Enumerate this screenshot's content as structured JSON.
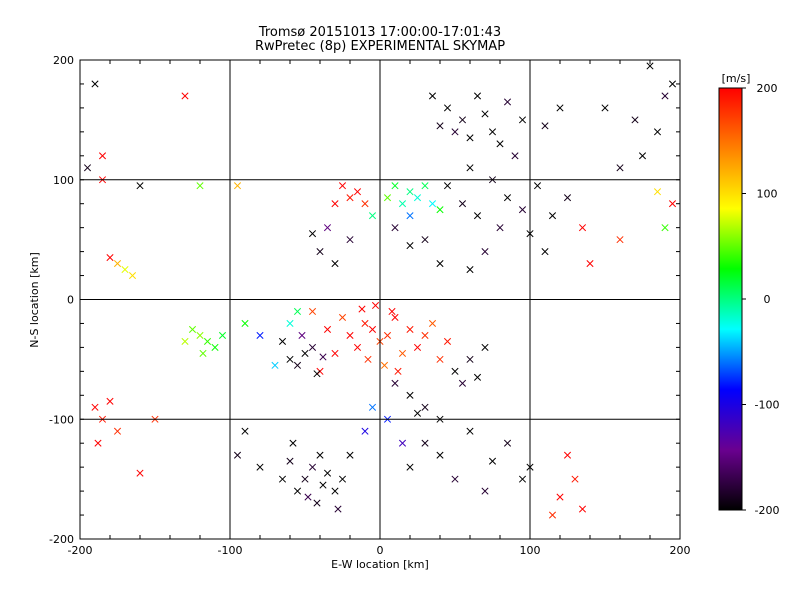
{
  "chart_data": {
    "type": "scatter",
    "title": "Tromsø 20151013 17:00:00-17:01:43",
    "subtitle": "RwPretec (8p) EXPERIMENTAL SKYMAP",
    "xlabel": "E-W location [km]",
    "ylabel": "N-S location [km]",
    "xlim": [
      -200,
      200
    ],
    "ylim": [
      -200,
      200
    ],
    "xticks": [
      -200,
      -100,
      0,
      100,
      200
    ],
    "yticks": [
      -200,
      -100,
      0,
      100,
      200
    ],
    "grid": true,
    "colorbar": {
      "label": "[m/s]",
      "range": [
        -200,
        200
      ],
      "ticks": [
        200,
        100,
        0,
        -100,
        -200
      ],
      "colors": [
        "#000000",
        "#6a0090",
        "#0000ff",
        "#00ffff",
        "#00ff00",
        "#ffff00",
        "#ff8000",
        "#ff0000"
      ]
    },
    "marker_types": [
      "cross",
      "dot"
    ],
    "points": [
      [
        -5,
        -25,
        200,
        "x"
      ],
      [
        5,
        -30,
        180,
        "x"
      ],
      [
        -10,
        -20,
        190,
        "x"
      ],
      [
        10,
        -15,
        200,
        "x"
      ],
      [
        0,
        -35,
        170,
        "x"
      ],
      [
        -15,
        -40,
        200,
        "x"
      ],
      [
        15,
        -45,
        160,
        "x"
      ],
      [
        -20,
        -30,
        200,
        "x"
      ],
      [
        20,
        -25,
        190,
        "x"
      ],
      [
        -8,
        -50,
        180,
        "x"
      ],
      [
        8,
        -10,
        200,
        "x"
      ],
      [
        -25,
        -15,
        170,
        "x"
      ],
      [
        25,
        -40,
        200,
        "x"
      ],
      [
        3,
        -55,
        150,
        "x"
      ],
      [
        -3,
        -5,
        200,
        "x"
      ],
      [
        30,
        -30,
        180,
        "x"
      ],
      [
        -30,
        -45,
        200,
        "x"
      ],
      [
        12,
        -60,
        190,
        "x"
      ],
      [
        -12,
        -8,
        200,
        "x"
      ],
      [
        35,
        -20,
        160,
        "x"
      ],
      [
        -35,
        -25,
        200,
        "x"
      ],
      [
        40,
        -50,
        180,
        "x"
      ],
      [
        -40,
        -60,
        200,
        "x"
      ],
      [
        45,
        -35,
        190,
        "x"
      ],
      [
        -45,
        -10,
        170,
        "x"
      ],
      [
        -50,
        -45,
        -200,
        "x"
      ],
      [
        -55,
        -55,
        -190,
        "x"
      ],
      [
        -45,
        -40,
        -180,
        "x"
      ],
      [
        -60,
        -50,
        -200,
        "x"
      ],
      [
        -38,
        -48,
        -170,
        "x"
      ],
      [
        -65,
        -35,
        -200,
        "x"
      ],
      [
        -52,
        -30,
        -150,
        "x"
      ],
      [
        -42,
        -62,
        -200,
        "x"
      ],
      [
        50,
        -60,
        -200,
        "x"
      ],
      [
        60,
        -50,
        -190,
        "x"
      ],
      [
        70,
        -40,
        -200,
        "x"
      ],
      [
        55,
        -70,
        -180,
        "x"
      ],
      [
        65,
        -65,
        -200,
        "x"
      ],
      [
        20,
        -80,
        -200,
        "x"
      ],
      [
        30,
        -90,
        -190,
        "x"
      ],
      [
        40,
        -100,
        -200,
        "x"
      ],
      [
        10,
        -70,
        -180,
        "x"
      ],
      [
        25,
        -95,
        -200,
        "x"
      ],
      [
        -40,
        -130,
        -200,
        "x"
      ],
      [
        -50,
        -150,
        -190,
        "x"
      ],
      [
        -30,
        -160,
        -200,
        "x"
      ],
      [
        -45,
        -140,
        -180,
        "x"
      ],
      [
        -55,
        -160,
        -200,
        "x"
      ],
      [
        -35,
        -145,
        -200,
        "x"
      ],
      [
        -60,
        -135,
        -190,
        "x"
      ],
      [
        -25,
        -150,
        -200,
        "x"
      ],
      [
        -48,
        -165,
        -170,
        "x"
      ],
      [
        -38,
        -155,
        -200,
        "x"
      ],
      [
        -20,
        -130,
        -200,
        "x"
      ],
      [
        -65,
        -150,
        -200,
        "x"
      ],
      [
        -42,
        -170,
        -190,
        "x"
      ],
      [
        -58,
        -120,
        -200,
        "x"
      ],
      [
        -28,
        -175,
        -180,
        "x"
      ],
      [
        -90,
        -110,
        -200,
        "x"
      ],
      [
        -95,
        -130,
        -190,
        "x"
      ],
      [
        -80,
        -140,
        -200,
        "x"
      ],
      [
        20,
        -140,
        -200,
        "x"
      ],
      [
        30,
        -120,
        -190,
        "x"
      ],
      [
        40,
        -130,
        -200,
        "x"
      ],
      [
        50,
        -150,
        -180,
        "x"
      ],
      [
        60,
        -110,
        -200,
        "x"
      ],
      [
        75,
        -135,
        -200,
        "x"
      ],
      [
        85,
        -120,
        -190,
        "x"
      ],
      [
        95,
        -150,
        -200,
        "x"
      ],
      [
        70,
        -160,
        -180,
        "x"
      ],
      [
        100,
        -140,
        -200,
        "x"
      ],
      [
        45,
        160,
        -200,
        "x"
      ],
      [
        55,
        150,
        -190,
        "x"
      ],
      [
        65,
        170,
        -200,
        "x"
      ],
      [
        50,
        140,
        -180,
        "x"
      ],
      [
        70,
        155,
        -200,
        "x"
      ],
      [
        60,
        135,
        -200,
        "x"
      ],
      [
        40,
        145,
        -190,
        "x"
      ],
      [
        75,
        140,
        -200,
        "x"
      ],
      [
        85,
        165,
        -180,
        "x"
      ],
      [
        95,
        150,
        -200,
        "x"
      ],
      [
        80,
        130,
        -200,
        "x"
      ],
      [
        110,
        145,
        -190,
        "x"
      ],
      [
        120,
        160,
        -200,
        "x"
      ],
      [
        35,
        170,
        -200,
        "x"
      ],
      [
        90,
        120,
        -180,
        "x"
      ],
      [
        60,
        110,
        -200,
        "x"
      ],
      [
        75,
        100,
        -190,
        "x"
      ],
      [
        85,
        85,
        -200,
        "x"
      ],
      [
        95,
        75,
        -180,
        "x"
      ],
      [
        105,
        95,
        -200,
        "x"
      ],
      [
        65,
        70,
        -200,
        "x"
      ],
      [
        55,
        80,
        -190,
        "x"
      ],
      [
        45,
        95,
        -200,
        "x"
      ],
      [
        80,
        60,
        -180,
        "x"
      ],
      [
        100,
        55,
        -200,
        "x"
      ],
      [
        115,
        70,
        -200,
        "x"
      ],
      [
        125,
        85,
        -190,
        "x"
      ],
      [
        110,
        40,
        -200,
        "x"
      ],
      [
        70,
        40,
        -180,
        "x"
      ],
      [
        60,
        25,
        -200,
        "x"
      ],
      [
        40,
        30,
        -200,
        "x"
      ],
      [
        30,
        50,
        -190,
        "x"
      ],
      [
        20,
        45,
        -200,
        "x"
      ],
      [
        10,
        60,
        -180,
        "x"
      ],
      [
        -30,
        30,
        -200,
        "x"
      ],
      [
        -40,
        40,
        -190,
        "x"
      ],
      [
        -45,
        55,
        -200,
        "x"
      ],
      [
        -35,
        60,
        -150,
        "x"
      ],
      [
        -20,
        50,
        -180,
        "x"
      ],
      [
        150,
        160,
        -200,
        "x"
      ],
      [
        170,
        150,
        -190,
        "x"
      ],
      [
        185,
        140,
        -200,
        "x"
      ],
      [
        190,
        170,
        -180,
        "x"
      ],
      [
        175,
        120,
        -200,
        "x"
      ],
      [
        180,
        195,
        -200,
        "x"
      ],
      [
        160,
        110,
        -190,
        "x"
      ],
      [
        195,
        180,
        -200,
        "x"
      ],
      [
        -160,
        95,
        -200,
        "x"
      ],
      [
        -195,
        110,
        -190,
        "x"
      ],
      [
        -190,
        180,
        -200,
        "x"
      ],
      [
        -15,
        90,
        200,
        "x"
      ],
      [
        -20,
        85,
        190,
        "x"
      ],
      [
        -25,
        95,
        200,
        "x"
      ],
      [
        -10,
        80,
        180,
        "x"
      ],
      [
        -30,
        80,
        200,
        "x"
      ],
      [
        -190,
        -90,
        200,
        "x"
      ],
      [
        -185,
        -100,
        190,
        "x"
      ],
      [
        -180,
        -85,
        200,
        "x"
      ],
      [
        -175,
        -110,
        180,
        "x"
      ],
      [
        -188,
        -120,
        200,
        "x"
      ],
      [
        -160,
        -145,
        200,
        "x"
      ],
      [
        -150,
        -100,
        180,
        "x"
      ],
      [
        -120,
        -30,
        60,
        "x"
      ],
      [
        -115,
        -35,
        40,
        "x"
      ],
      [
        -125,
        -25,
        50,
        "x"
      ],
      [
        -110,
        -40,
        30,
        "x"
      ],
      [
        -130,
        -35,
        70,
        "x"
      ],
      [
        -105,
        -30,
        20,
        "x"
      ],
      [
        -118,
        -45,
        50,
        "x"
      ],
      [
        -170,
        25,
        80,
        "x"
      ],
      [
        -175,
        30,
        120,
        "x"
      ],
      [
        -165,
        20,
        100,
        "x"
      ],
      [
        -180,
        35,
        200,
        "x"
      ],
      [
        -120,
        95,
        50,
        "x"
      ],
      [
        -95,
        95,
        120,
        "x"
      ],
      [
        -130,
        170,
        200,
        "x"
      ],
      [
        -185,
        120,
        200,
        "x"
      ],
      [
        -185,
        100,
        200,
        "x"
      ],
      [
        20,
        90,
        0,
        "x"
      ],
      [
        25,
        85,
        -20,
        "x"
      ],
      [
        30,
        95,
        10,
        "x"
      ],
      [
        15,
        80,
        -10,
        "x"
      ],
      [
        10,
        95,
        20,
        "x"
      ],
      [
        35,
        80,
        -30,
        "x"
      ],
      [
        5,
        85,
        50,
        "x"
      ],
      [
        40,
        75,
        30,
        "x"
      ],
      [
        -5,
        70,
        0,
        "x"
      ],
      [
        20,
        70,
        -60,
        "x"
      ],
      [
        -60,
        -20,
        -20,
        "x"
      ],
      [
        -70,
        -55,
        -40,
        "x"
      ],
      [
        -55,
        -10,
        10,
        "x"
      ],
      [
        -90,
        -20,
        30,
        "x"
      ],
      [
        -80,
        -30,
        -80,
        "x"
      ],
      [
        125,
        -130,
        200,
        "x"
      ],
      [
        130,
        -150,
        190,
        "x"
      ],
      [
        120,
        -165,
        200,
        "x"
      ],
      [
        115,
        -180,
        180,
        "x"
      ],
      [
        135,
        -175,
        200,
        "x"
      ],
      [
        5,
        -100,
        -80,
        "x"
      ],
      [
        -10,
        -110,
        -100,
        "x"
      ],
      [
        15,
        -120,
        -120,
        "x"
      ],
      [
        -5,
        -90,
        -60,
        "x"
      ],
      [
        140,
        30,
        200,
        "x"
      ],
      [
        160,
        50,
        180,
        "x"
      ],
      [
        135,
        60,
        200,
        "x"
      ],
      [
        190,
        60,
        40,
        "x"
      ],
      [
        195,
        80,
        200,
        "x"
      ],
      [
        185,
        90,
        100,
        "x"
      ]
    ]
  }
}
